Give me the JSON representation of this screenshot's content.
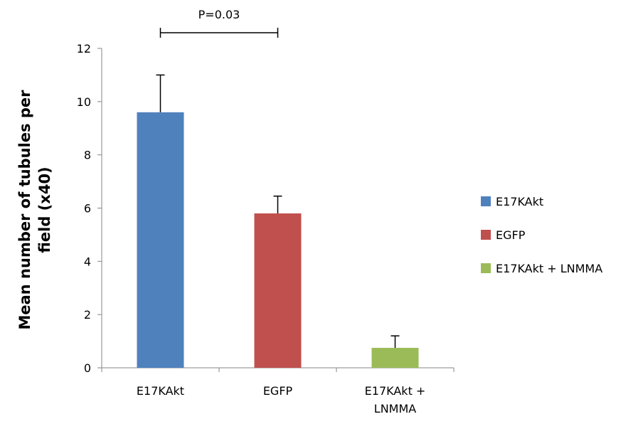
{
  "chart_data": {
    "type": "bar",
    "categories": [
      [
        "E17KAkt"
      ],
      [
        "EGFP"
      ],
      [
        "E17KAkt +",
        "LNMMA"
      ]
    ],
    "values": [
      9.6,
      5.8,
      0.75
    ],
    "error_plus": [
      1.4,
      0.65,
      0.45
    ],
    "colors": [
      "#4f81bd",
      "#c0504d",
      "#9bbb59"
    ],
    "ylabel": [
      "Mean number of tubules per",
      "field (x40)"
    ],
    "ylim": [
      0,
      12
    ],
    "yticks": [
      0,
      2,
      4,
      6,
      8,
      10,
      12
    ],
    "legend": {
      "position": "right",
      "entries": [
        "E17KAkt",
        "EGFP",
        "E17KAkt + LNMMA"
      ]
    },
    "annotation": {
      "text": "P=0.03",
      "between": [
        0,
        1
      ]
    },
    "grid": false
  }
}
